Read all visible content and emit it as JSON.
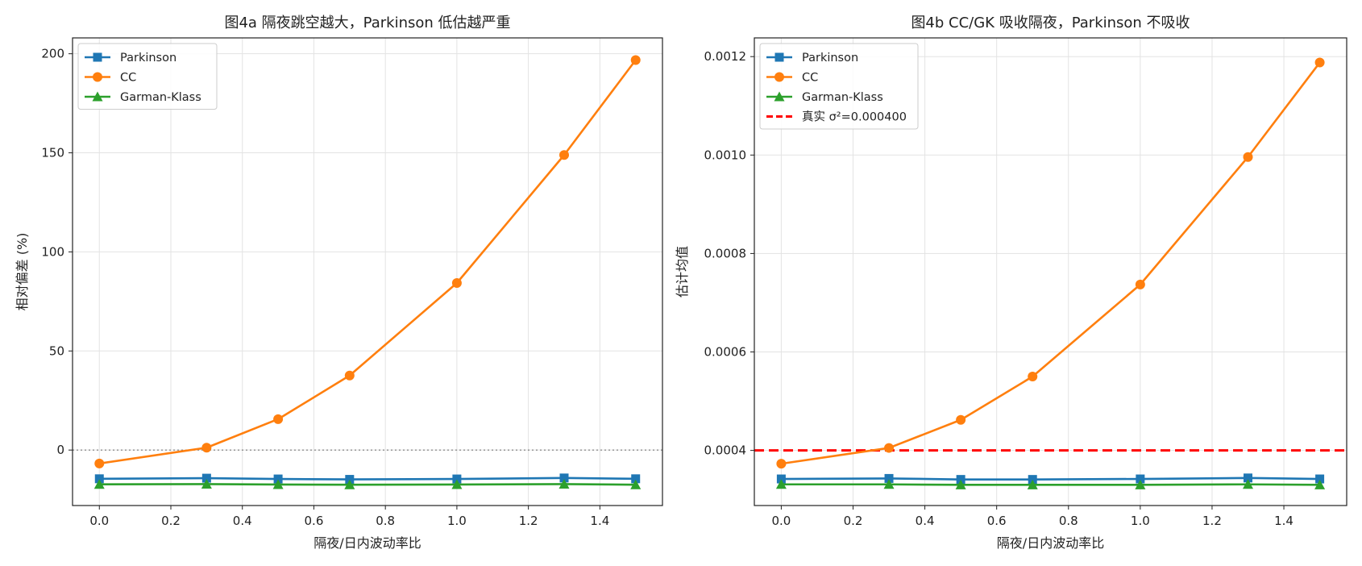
{
  "chart_data": [
    {
      "type": "line",
      "title": "图4a  隔夜跳空越大，Parkinson 低估越严重",
      "xlabel": "隔夜/日内波动率比",
      "ylabel": "相对偏差 (%)",
      "xlim": [
        -0.075,
        1.575
      ],
      "ylim": [
        -28,
        208
      ],
      "xticks": [
        0.0,
        0.2,
        0.4,
        0.6,
        0.8,
        1.0,
        1.2,
        1.4
      ],
      "xtick_labels": [
        "0.0",
        "0.2",
        "0.4",
        "0.6",
        "0.8",
        "1.0",
        "1.2",
        "1.4"
      ],
      "yticks": [
        0,
        50,
        100,
        150,
        200
      ],
      "ytick_labels": [
        "0",
        "50",
        "100",
        "150",
        "200"
      ],
      "grid": true,
      "legend_position": "top-left",
      "x": [
        0.0,
        0.3,
        0.5,
        0.7,
        1.0,
        1.3,
        1.5
      ],
      "series": [
        {
          "name": "Parkinson",
          "color": "#1f77b4",
          "marker": "square",
          "values": [
            -14.5,
            -14.2,
            -14.6,
            -14.8,
            -14.6,
            -14.1,
            -14.5
          ]
        },
        {
          "name": "CC",
          "color": "#ff7f0e",
          "marker": "circle",
          "values": [
            -6.8,
            1.2,
            15.6,
            37.6,
            84.3,
            148.9,
            196.8
          ]
        },
        {
          "name": "Garman-Klass",
          "color": "#2ca02c",
          "marker": "triangle",
          "values": [
            -17.3,
            -17.2,
            -17.4,
            -17.5,
            -17.4,
            -17.2,
            -17.5
          ]
        }
      ],
      "reference_lines": [
        {
          "axis": "y",
          "value": 0,
          "style": "dotted",
          "color": "#777777",
          "label": ""
        }
      ]
    },
    {
      "type": "line",
      "title": "图4b  CC/GK 吸收隔夜，Parkinson 不吸收",
      "xlabel": "隔夜/日内波动率比",
      "ylabel": "估计均值",
      "xlim": [
        -0.075,
        1.575
      ],
      "ylim": [
        0.000288,
        0.001238
      ],
      "xticks": [
        0.0,
        0.2,
        0.4,
        0.6,
        0.8,
        1.0,
        1.2,
        1.4
      ],
      "xtick_labels": [
        "0.0",
        "0.2",
        "0.4",
        "0.6",
        "0.8",
        "1.0",
        "1.2",
        "1.4"
      ],
      "yticks": [
        0.0004,
        0.0006,
        0.0008,
        0.001,
        0.0012
      ],
      "ytick_labels": [
        "0.0004",
        "0.0006",
        "0.0008",
        "0.0010",
        "0.0012"
      ],
      "grid": true,
      "legend_position": "top-left",
      "x": [
        0.0,
        0.3,
        0.5,
        0.7,
        1.0,
        1.3,
        1.5
      ],
      "series": [
        {
          "name": "Parkinson",
          "color": "#1f77b4",
          "marker": "square",
          "values": [
            0.000342,
            0.000343,
            0.000341,
            0.000341,
            0.000342,
            0.000344,
            0.000342
          ]
        },
        {
          "name": "CC",
          "color": "#ff7f0e",
          "marker": "circle",
          "values": [
            0.000373,
            0.000405,
            0.000462,
            0.00055,
            0.000737,
            0.000996,
            0.001188
          ]
        },
        {
          "name": "Garman-Klass",
          "color": "#2ca02c",
          "marker": "triangle",
          "values": [
            0.000331,
            0.000331,
            0.00033,
            0.00033,
            0.00033,
            0.000331,
            0.00033
          ]
        }
      ],
      "reference_lines": [
        {
          "axis": "y",
          "value": 0.0004,
          "style": "dashed",
          "color": "#ff0000",
          "label": "真实 σ²=0.000400"
        }
      ]
    }
  ]
}
